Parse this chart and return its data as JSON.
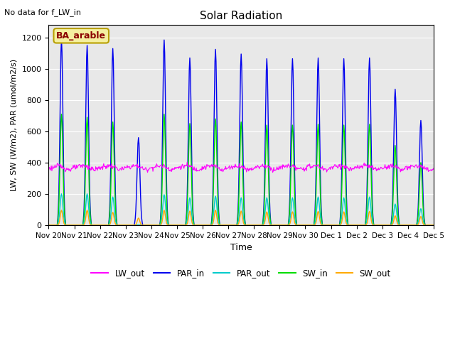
{
  "title": "Solar Radiation",
  "top_left_text": "No data for f_LW_in",
  "box_label": "BA_arable",
  "xlabel": "Time",
  "ylabel": "LW, SW (W/m2), PAR (umol/m2/s)",
  "ylim": [
    0,
    1280
  ],
  "yticks": [
    0,
    200,
    400,
    600,
    800,
    1000,
    1200
  ],
  "background_color": "#e8e8e8",
  "colors": {
    "LW_out": "#ff00ff",
    "PAR_in": "#0000ee",
    "PAR_out": "#00cccc",
    "SW_in": "#00dd00",
    "SW_out": "#ffaa00"
  },
  "x_tick_labels": [
    "Nov 20",
    "Nov 21",
    "Nov 22",
    "Nov 23",
    "Nov 24",
    "Nov 25",
    "Nov 26",
    "Nov 27",
    "Nov 28",
    "Nov 29",
    "Nov 30",
    "Dec 1",
    "Dec 2",
    "Dec 3",
    "Dec 4",
    "Dec 5"
  ],
  "PAR_in_peaks": [
    1190,
    1150,
    1130,
    560,
    1185,
    1070,
    1125,
    1095,
    1065,
    1065,
    1070,
    1065,
    1070,
    870,
    670
  ],
  "SW_in_peaks": [
    710,
    690,
    660,
    0,
    710,
    650,
    680,
    660,
    640,
    640,
    645,
    640,
    645,
    510,
    400
  ],
  "PAR_out_peaks": [
    200,
    200,
    180,
    0,
    195,
    175,
    185,
    175,
    175,
    175,
    180,
    175,
    180,
    135,
    105
  ],
  "SW_out_peaks": [
    95,
    95,
    82,
    45,
    95,
    90,
    95,
    90,
    85,
    85,
    88,
    85,
    88,
    60,
    55
  ],
  "figsize": [
    6.4,
    4.8
  ],
  "dpi": 100
}
